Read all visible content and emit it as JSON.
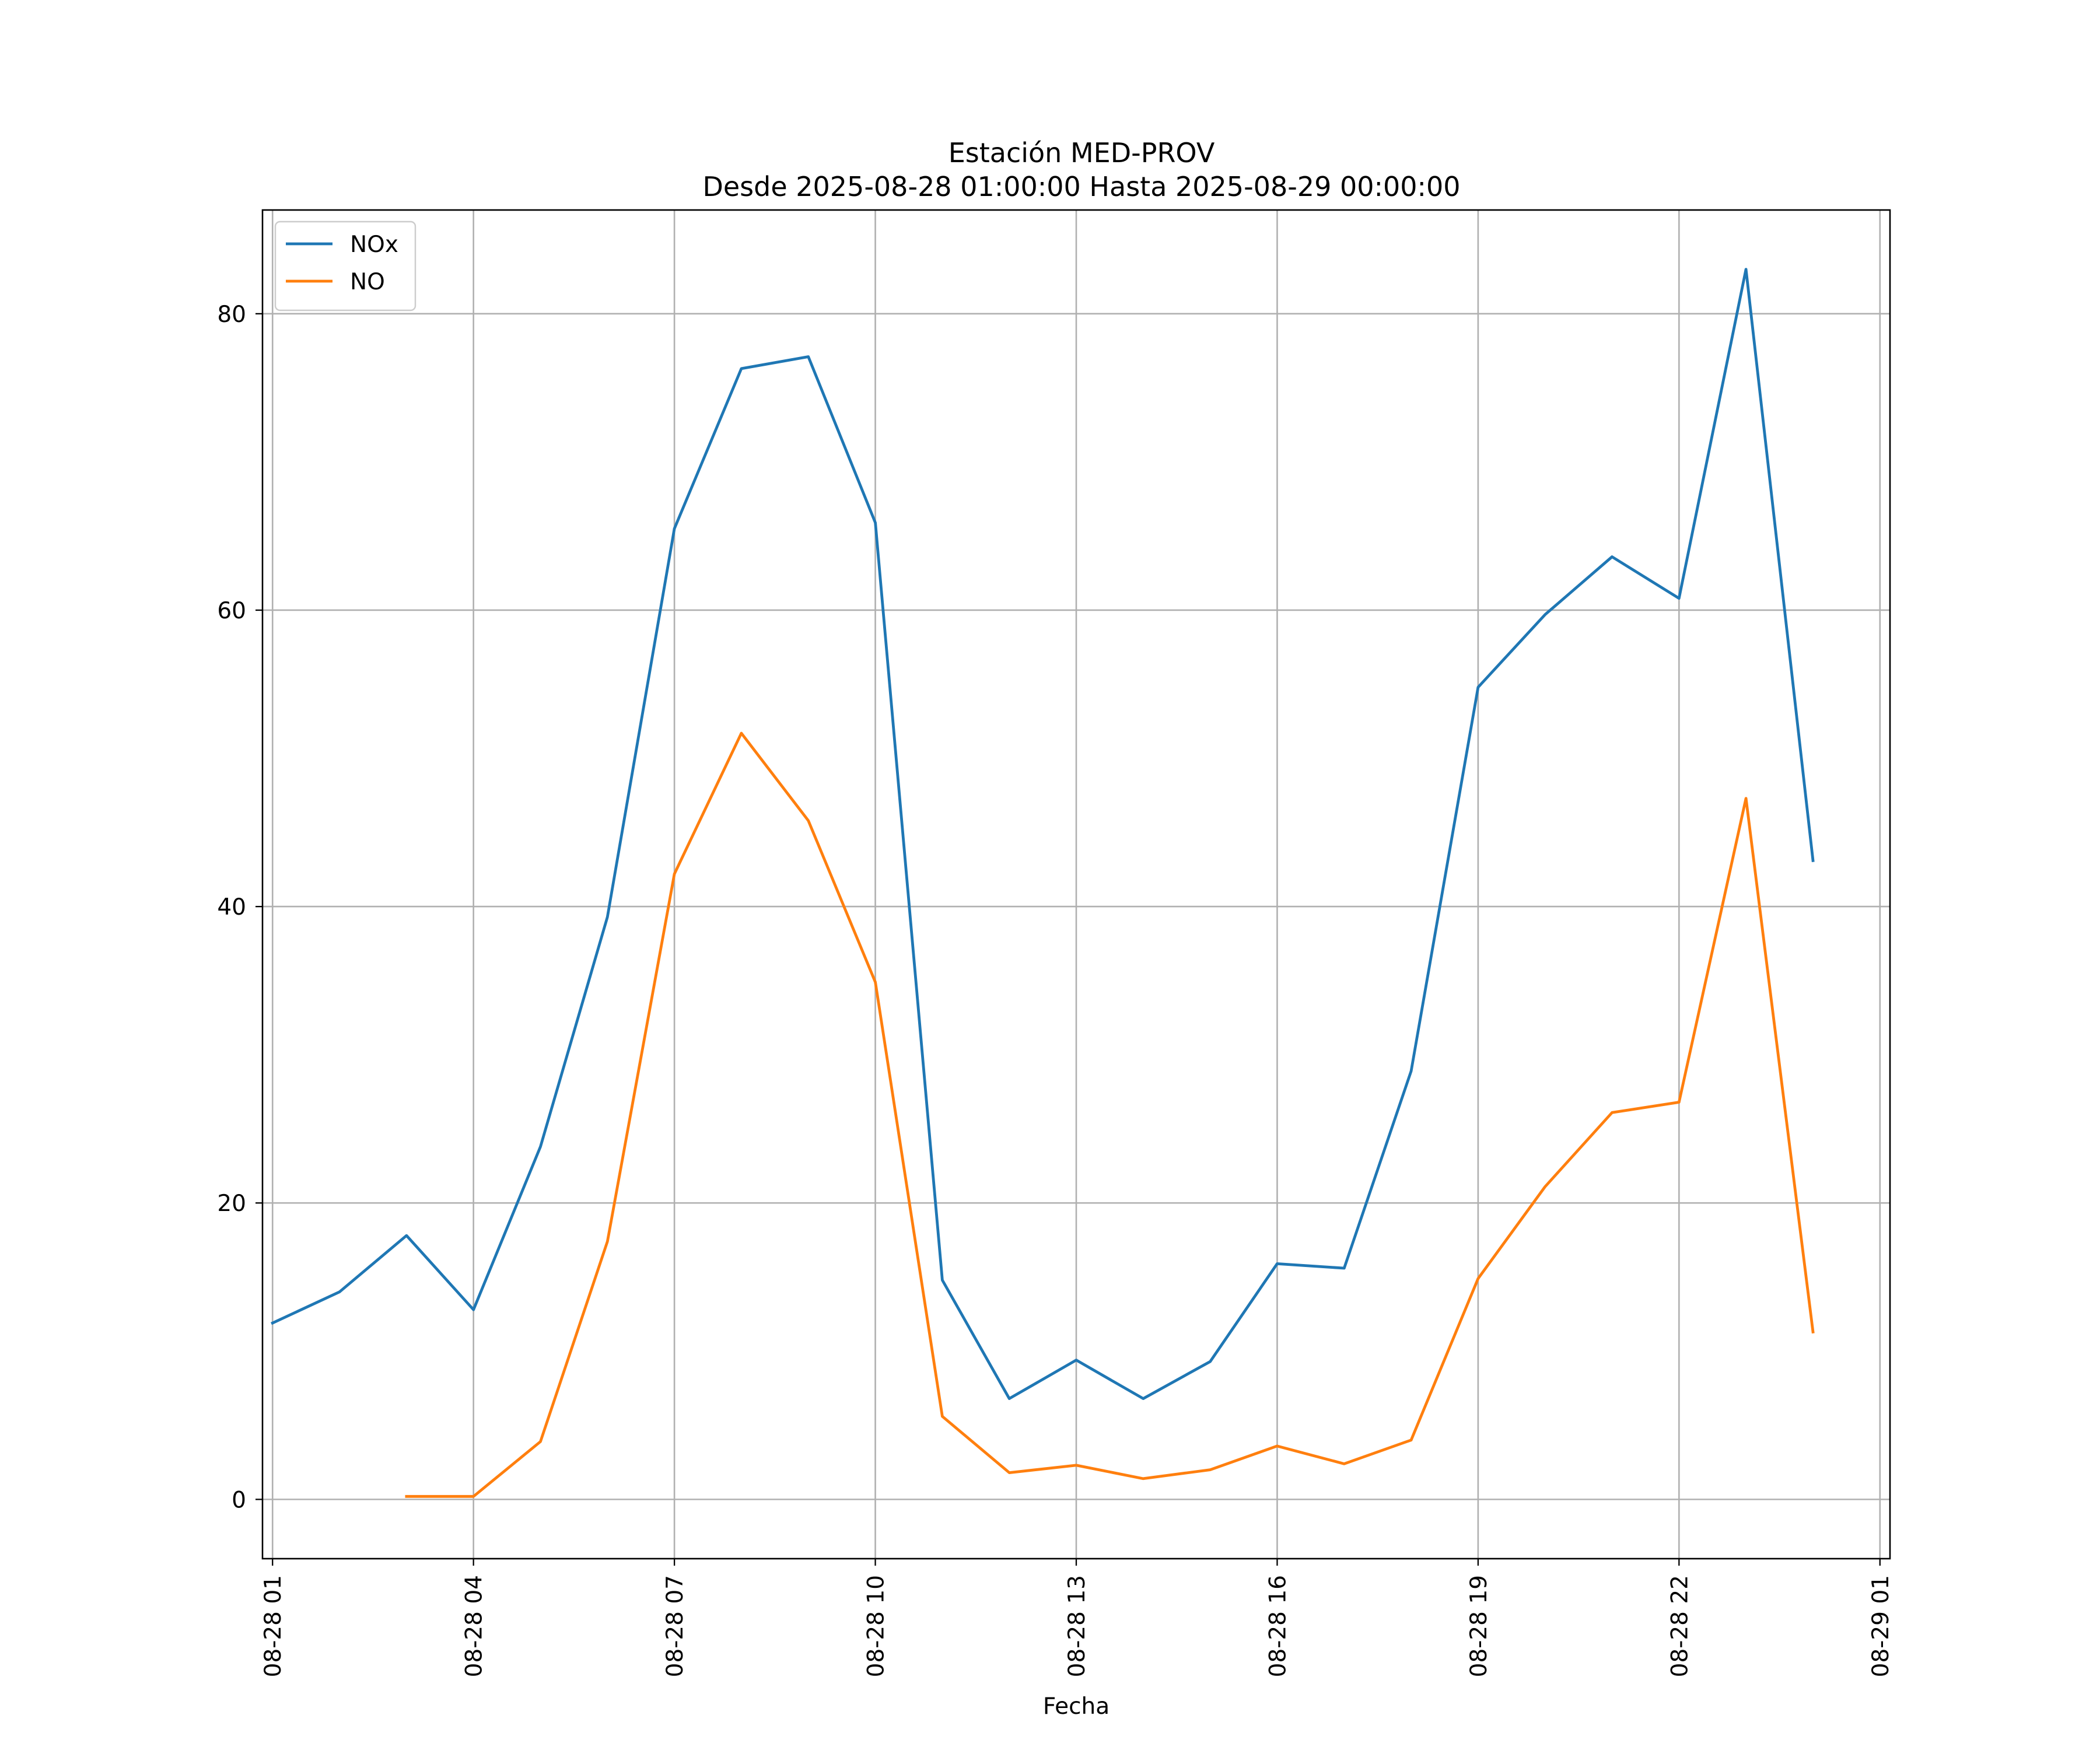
{
  "chart_data": {
    "type": "line",
    "title": "Estación MED-PROV",
    "subtitle": "Desde 2025-08-28 01:00:00 Hasta 2025-08-29 00:00:00",
    "xlabel": "Fecha",
    "ylabel": "",
    "x": [
      "08-28 01",
      "08-28 02",
      "08-28 03",
      "08-28 04",
      "08-28 05",
      "08-28 06",
      "08-28 07",
      "08-28 08",
      "08-28 09",
      "08-28 10",
      "08-28 11",
      "08-28 12",
      "08-28 13",
      "08-28 14",
      "08-28 15",
      "08-28 16",
      "08-28 17",
      "08-28 18",
      "08-28 19",
      "08-28 20",
      "08-28 21",
      "08-28 22",
      "08-28 23",
      "08-29 00"
    ],
    "x_ticks": [
      "08-28 01",
      "08-28 04",
      "08-28 07",
      "08-28 10",
      "08-28 13",
      "08-28 16",
      "08-28 19",
      "08-28 22",
      "08-29 01"
    ],
    "y_ticks": [
      0,
      20,
      40,
      60,
      80
    ],
    "xlim": [
      "08-28 00:51",
      "08-29 01:09"
    ],
    "ylim": [
      -4,
      87
    ],
    "grid": true,
    "legend_position": "upper-left",
    "series": [
      {
        "name": "NOx",
        "color": "#1f77b4",
        "values": [
          11.9,
          14.0,
          17.8,
          12.8,
          23.8,
          39.3,
          65.5,
          76.3,
          77.1,
          65.9,
          14.8,
          6.8,
          9.4,
          6.8,
          9.3,
          15.9,
          15.6,
          28.9,
          54.8,
          59.7,
          63.6,
          60.8,
          83.0,
          43.1
        ]
      },
      {
        "name": "NO",
        "color": "#ff7f0e",
        "values": [
          null,
          null,
          0.2,
          0.2,
          3.9,
          17.4,
          42.2,
          51.7,
          45.8,
          34.9,
          5.6,
          1.8,
          2.3,
          1.4,
          2.0,
          3.6,
          2.4,
          4.0,
          14.9,
          21.1,
          26.1,
          26.8,
          47.3,
          11.3
        ]
      }
    ]
  }
}
